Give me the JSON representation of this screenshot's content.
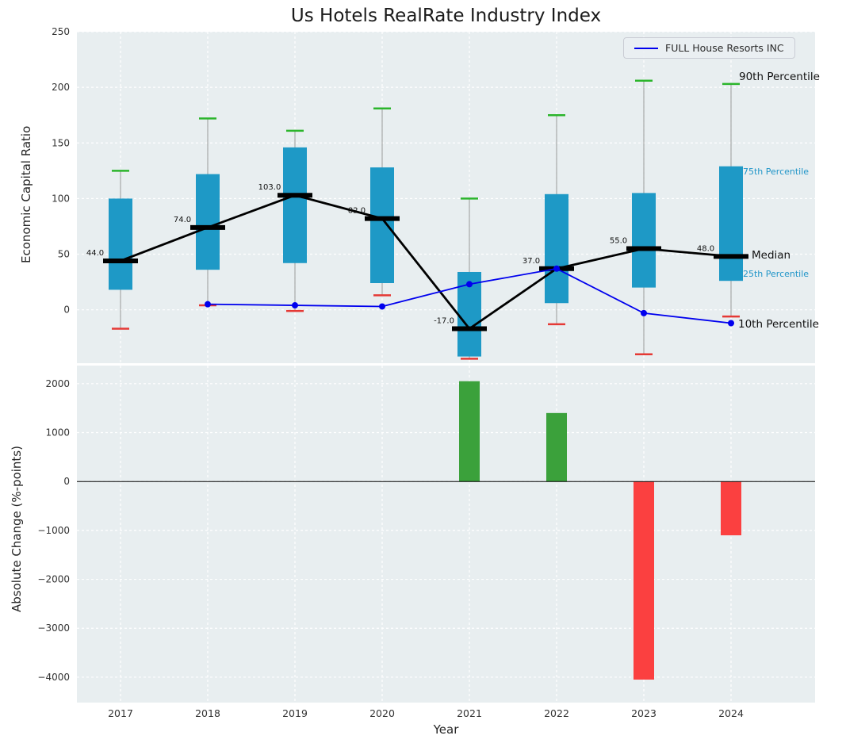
{
  "chart_data": {
    "type": "boxplot+line+bar",
    "title": "Us Hotels RealRate Industry Index",
    "years": [
      2017,
      2018,
      2019,
      2020,
      2021,
      2022,
      2023,
      2024
    ],
    "colors": {
      "panel_bg": "#e8eef0",
      "grid": "#ffffff",
      "box": "#1e99c6",
      "whisker": "#999999",
      "cap_top": "#2bb52b",
      "cap_bottom": "#e53935",
      "median": "#000000",
      "company_line": "#0000ee",
      "bar_positive": "#3ba13b",
      "bar_negative": "#fb4040",
      "tick_text": "#333333",
      "annotation_blue": "#2095c8"
    },
    "top_panel": {
      "ylabel": "Economic Capital Ratio",
      "ylim": [
        -48,
        250
      ],
      "yticks": [
        0,
        50,
        100,
        150,
        200,
        250
      ],
      "grid": true,
      "boxes": [
        {
          "year": 2017,
          "p10": -17,
          "p25": 18,
          "median": 44,
          "p75": 100,
          "p90": 125
        },
        {
          "year": 2018,
          "p10": 4,
          "p25": 36,
          "median": 74,
          "p75": 122,
          "p90": 172
        },
        {
          "year": 2019,
          "p10": -1,
          "p25": 42,
          "median": 103,
          "p75": 146,
          "p90": 161
        },
        {
          "year": 2020,
          "p10": 13,
          "p25": 24,
          "median": 82,
          "p75": 128,
          "p90": 181
        },
        {
          "year": 2021,
          "p10": -44,
          "p25": -42,
          "median": -17,
          "p75": 34,
          "p90": 100
        },
        {
          "year": 2022,
          "p10": -13,
          "p25": 6,
          "median": 37,
          "p75": 104,
          "p90": 175
        },
        {
          "year": 2023,
          "p10": -40,
          "p25": 20,
          "median": 55,
          "p75": 105,
          "p90": 206
        },
        {
          "year": 2024,
          "p10": -6,
          "p25": 26,
          "median": 48,
          "p75": 129,
          "p90": 203
        }
      ],
      "median_labels": [
        "44.0",
        "74.0",
        "103.0",
        "82.0",
        "-17.0",
        "37.0",
        "55.0",
        "48.0"
      ],
      "company_line": {
        "name": "FULL House Resorts INC",
        "years": [
          2018,
          2019,
          2020,
          2021,
          2022,
          2023,
          2024
        ],
        "values": [
          5,
          4,
          3,
          23,
          37,
          -3,
          -12
        ]
      },
      "annotations": {
        "p90": "90th Percentile",
        "p75": "75th Percentile",
        "median": "Median",
        "p25": "25th Percentile",
        "p10": "10th Percentile"
      }
    },
    "bottom_panel": {
      "ylabel": "Absolute Change (%-points)",
      "xlabel": "Year",
      "ylim": [
        -4520,
        2370
      ],
      "yticks": [
        -4000,
        -3000,
        -2000,
        -1000,
        0,
        1000,
        2000
      ],
      "grid": true,
      "bars": [
        {
          "year": 2021,
          "value": 2050
        },
        {
          "year": 2022,
          "value": 1400
        },
        {
          "year": 2023,
          "value": -4050
        },
        {
          "year": 2024,
          "value": -1100
        }
      ]
    }
  }
}
